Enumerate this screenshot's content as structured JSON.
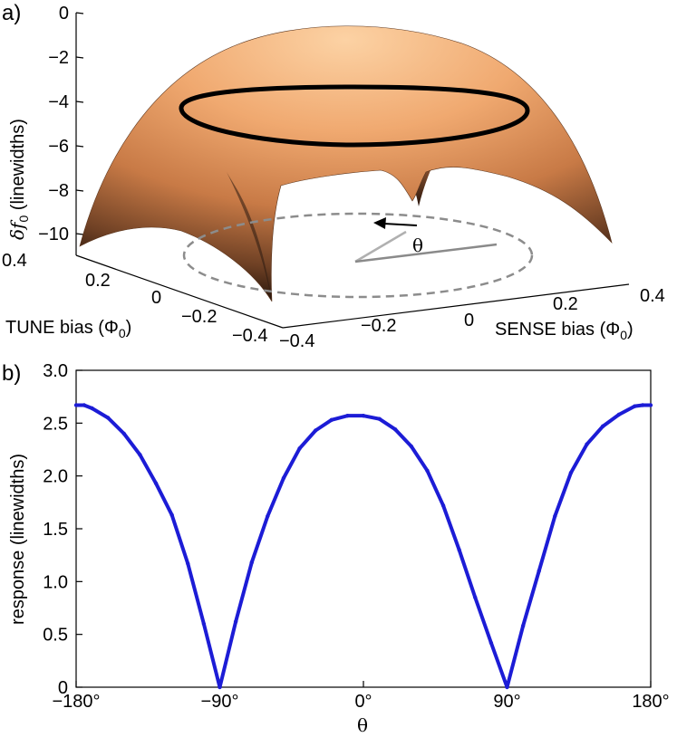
{
  "panel_a": {
    "label": "a)",
    "zlabel_main": "δf",
    "zlabel_sub": "0",
    "zlabel_rest": " (linewidths)",
    "z_ticks": [
      "0",
      "−2",
      "−4",
      "−6",
      "−8",
      "−10"
    ],
    "tune_ticks": [
      "0.4",
      "0.2",
      "0",
      "−0.2",
      "−0.4"
    ],
    "sense_ticks": [
      "−0.4",
      "−0.2",
      "0",
      "0.2",
      "0.4"
    ],
    "tune_label_main": "TUNE bias (Φ",
    "tune_label_sub": "0",
    "tune_label_end": ")",
    "sense_label_main": "SENSE bias (Φ",
    "sense_label_sub": "0",
    "sense_label_end": ")",
    "theta_symbol": "θ",
    "colors": {
      "surface_top": "#f7c08d",
      "surface_mid": "#d98a52",
      "surface_dark": "#3a2214",
      "ring": "#000000",
      "dashed": "#888888"
    }
  },
  "panel_b": {
    "label": "b)",
    "ylabel": "response (linewidths)",
    "xlabel": "θ",
    "x_tick_labels": [
      "−180°",
      "−90°",
      "0°",
      "90°",
      "180°"
    ],
    "y_tick_labels": [
      "0",
      "0.5",
      "1.0",
      "1.5",
      "2.0",
      "2.5",
      "3.0"
    ],
    "line_color": "#1c1cd6"
  },
  "chart_data": {
    "type": "line",
    "title": "",
    "xlabel": "θ",
    "ylabel": "response (linewidths)",
    "xlim": [
      -180,
      180
    ],
    "ylim": [
      0,
      3.0
    ],
    "x_ticks": [
      -180,
      -90,
      0,
      90,
      180
    ],
    "y_ticks": [
      0,
      0.5,
      1.0,
      1.5,
      2.0,
      2.5,
      3.0
    ],
    "grid": false,
    "series": [
      {
        "x": [
          -180,
          -175,
          -170,
          -160,
          -150,
          -140,
          -130,
          -120,
          -110,
          -100,
          -90,
          -80,
          -70,
          -60,
          -50,
          -40,
          -30,
          -20,
          -10,
          0,
          10,
          20,
          30,
          40,
          50,
          60,
          70,
          80,
          90,
          100,
          110,
          120,
          130,
          140,
          150,
          160,
          170,
          175,
          180
        ],
        "y": [
          2.67,
          2.67,
          2.64,
          2.55,
          2.4,
          2.2,
          1.93,
          1.63,
          1.17,
          0.6,
          0.0,
          0.62,
          1.18,
          1.62,
          1.98,
          2.26,
          2.43,
          2.53,
          2.57,
          2.57,
          2.54,
          2.44,
          2.28,
          2.05,
          1.72,
          1.3,
          0.85,
          0.42,
          0.0,
          0.58,
          1.1,
          1.62,
          2.03,
          2.3,
          2.47,
          2.58,
          2.66,
          2.67,
          2.67
        ]
      }
    ]
  }
}
